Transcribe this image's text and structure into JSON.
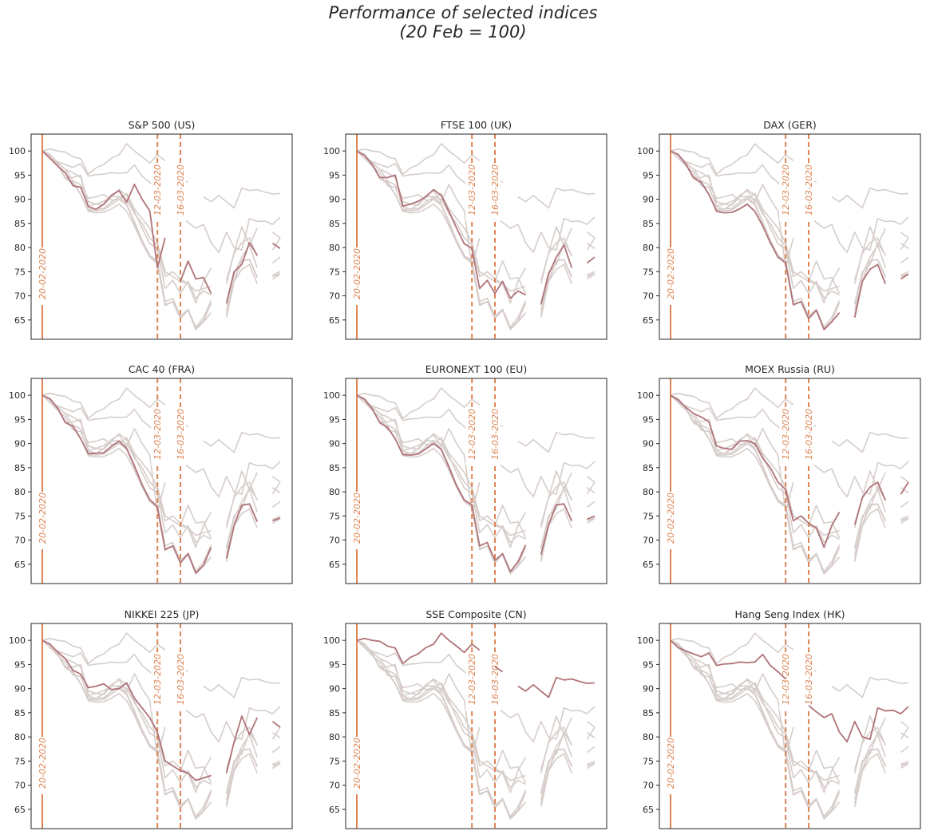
{
  "figure": {
    "title_line1": "Performance of selected indices",
    "title_line2": "(20 Feb = 100)"
  },
  "colors": {
    "highlight": "#b07378",
    "background_series": "#d6cdca",
    "marker": "#dd8452",
    "axis": "#262626"
  },
  "chart_data": {
    "type": "line",
    "layout": "3x3 small multiples; each panel highlights one index against all others in grey",
    "x_axis": "trading days from 20 Feb 2020 (no tick labels shown)",
    "ylim": [
      61,
      103.5
    ],
    "yticks": [
      65,
      70,
      75,
      80,
      85,
      90,
      95,
      100
    ],
    "grid": false,
    "vertical_markers": [
      {
        "label": "20-02-2020",
        "style": "solid",
        "x_index": 0
      },
      {
        "label": "12-03-2020",
        "style": "dashed",
        "x_index": 15
      },
      {
        "label": "16-03-2020",
        "style": "dashed",
        "x_index": 18
      }
    ],
    "series": [
      {
        "name": "S&P 500 (US)",
        "values": [
          100,
          98.5,
          96.9,
          95.5,
          92.8,
          92.5,
          88.5,
          87.9,
          89.0,
          90.8,
          91.8,
          89.4,
          93.1,
          90.0,
          87.6,
          75.8,
          82.0,
          null,
          73.0,
          77.2,
          73.5,
          73.8,
          70.5,
          null,
          68.5,
          75.0,
          76.5,
          81.0,
          78.4,
          null,
          80.9,
          79.8
        ]
      },
      {
        "name": "FTSE 100 (UK)",
        "values": [
          100,
          99.1,
          97.2,
          94.5,
          94.5,
          95.0,
          88.6,
          89.0,
          89.6,
          90.5,
          92.0,
          90.8,
          87.5,
          84.0,
          80.8,
          79.8,
          71.5,
          73.2,
          70.5,
          73.0,
          69.5,
          71.0,
          70.2,
          null,
          68.2,
          74.5,
          78.0,
          80.5,
          75.8,
          null,
          76.8,
          78.0
        ]
      },
      {
        "name": "DAX (GER)",
        "values": [
          100,
          99.3,
          97.3,
          94.5,
          93.5,
          91.0,
          87.5,
          87.2,
          87.3,
          88.0,
          89.0,
          87.5,
          84.5,
          81.0,
          78.0,
          76.8,
          68.2,
          68.8,
          65.3,
          67.0,
          63.0,
          64.6,
          66.5,
          null,
          65.5,
          73.0,
          75.5,
          76.5,
          72.5,
          null,
          73.5,
          74.5
        ]
      },
      {
        "name": "CAC 40 (FRA)",
        "values": [
          100,
          99.3,
          97.3,
          94.4,
          93.6,
          91.0,
          87.9,
          88.0,
          88.1,
          89.4,
          90.5,
          89.0,
          85.4,
          81.5,
          78.4,
          76.8,
          68.0,
          68.8,
          65.3,
          67.2,
          63.2,
          64.8,
          68.5,
          null,
          66.2,
          73.0,
          77.2,
          77.5,
          73.8,
          null,
          74.0,
          74.6
        ]
      },
      {
        "name": "EURONEXT 100 (EU)",
        "values": [
          100,
          99.2,
          97.2,
          94.3,
          93.3,
          91.0,
          87.7,
          87.6,
          87.8,
          88.9,
          90.0,
          88.8,
          85.1,
          81.2,
          78.3,
          77.3,
          68.8,
          69.5,
          65.8,
          67.2,
          63.5,
          65.5,
          69.0,
          null,
          67.0,
          73.2,
          77.3,
          77.5,
          74.0,
          null,
          74.3,
          75.0
        ]
      },
      {
        "name": "MOEX Russia (RU)",
        "values": [
          100,
          99.0,
          97.5,
          96.2,
          95.5,
          94.5,
          89.5,
          89.0,
          88.8,
          90.5,
          90.6,
          90.0,
          87.0,
          85.0,
          82.0,
          80.5,
          74.0,
          75.0,
          73.5,
          72.5,
          68.5,
          73.0,
          75.8,
          null,
          73.2,
          78.8,
          81.0,
          82.0,
          78.2,
          null,
          79.5,
          82.0
        ]
      },
      {
        "name": "NIKKEI 225 (JP)",
        "values": [
          100,
          99.2,
          97.6,
          96.2,
          93.8,
          93.0,
          90.2,
          90.5,
          91.0,
          89.8,
          90.0,
          91.2,
          88.0,
          86.0,
          84.0,
          81.0,
          75.0,
          74.0,
          73.0,
          72.5,
          71.0,
          71.5,
          72.0,
          null,
          72.5,
          79.0,
          84.3,
          80.5,
          84.0,
          null,
          83.2,
          82.0
        ]
      },
      {
        "name": "SSE Composite (CN)",
        "values": [
          100,
          100.4,
          100.0,
          99.8,
          98.8,
          98.4,
          95.2,
          96.5,
          97.2,
          98.5,
          99.2,
          101.5,
          100.0,
          98.8,
          97.5,
          99.2,
          98.0,
          null,
          94.5,
          93.5,
          null,
          90.5,
          89.5,
          90.8,
          89.5,
          88.2,
          92.3,
          91.8,
          92.0,
          91.5,
          91.1,
          91.2
        ]
      },
      {
        "name": "Hang Seng Index (HK)",
        "values": [
          100,
          98.5,
          97.8,
          97.2,
          96.6,
          97.4,
          94.8,
          95.1,
          95.2,
          95.5,
          95.4,
          95.5,
          97.1,
          94.8,
          93.5,
          92.0,
          null,
          null,
          86.5,
          85.2,
          84.0,
          84.8,
          81.0,
          79.0,
          83.2,
          80.0,
          79.5,
          86.0,
          85.4,
          85.5,
          84.8,
          86.3
        ]
      }
    ]
  }
}
